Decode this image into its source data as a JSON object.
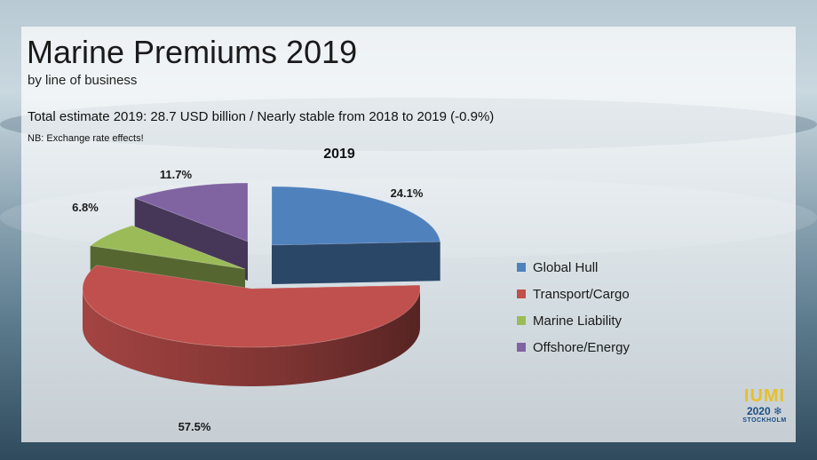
{
  "slide": {
    "title": "Marine Premiums 2019",
    "subtitle": "by line of business",
    "total_line": "Total estimate 2019: 28.7 USD billion / Nearly stable from 2018 to 2019 (-0.9%)",
    "note": "NB: Exchange rate effects!"
  },
  "chart_data": {
    "type": "pie",
    "title": "2019",
    "legend_position": "right",
    "categories": [
      "Global Hull",
      "Transport/Cargo",
      "Marine Liability",
      "Offshore/Energy"
    ],
    "values": [
      24.1,
      57.5,
      6.8,
      11.7
    ],
    "value_labels": [
      "24.1%",
      "57.5%",
      "6.8%",
      "11.7%"
    ],
    "colors": [
      "#4f81bd",
      "#c0504d",
      "#9bbb59",
      "#8064a2"
    ]
  },
  "logo": {
    "main": "IUMI",
    "year": "2020",
    "city": "STOCKHOLM",
    "icon": "snowflake-icon"
  }
}
